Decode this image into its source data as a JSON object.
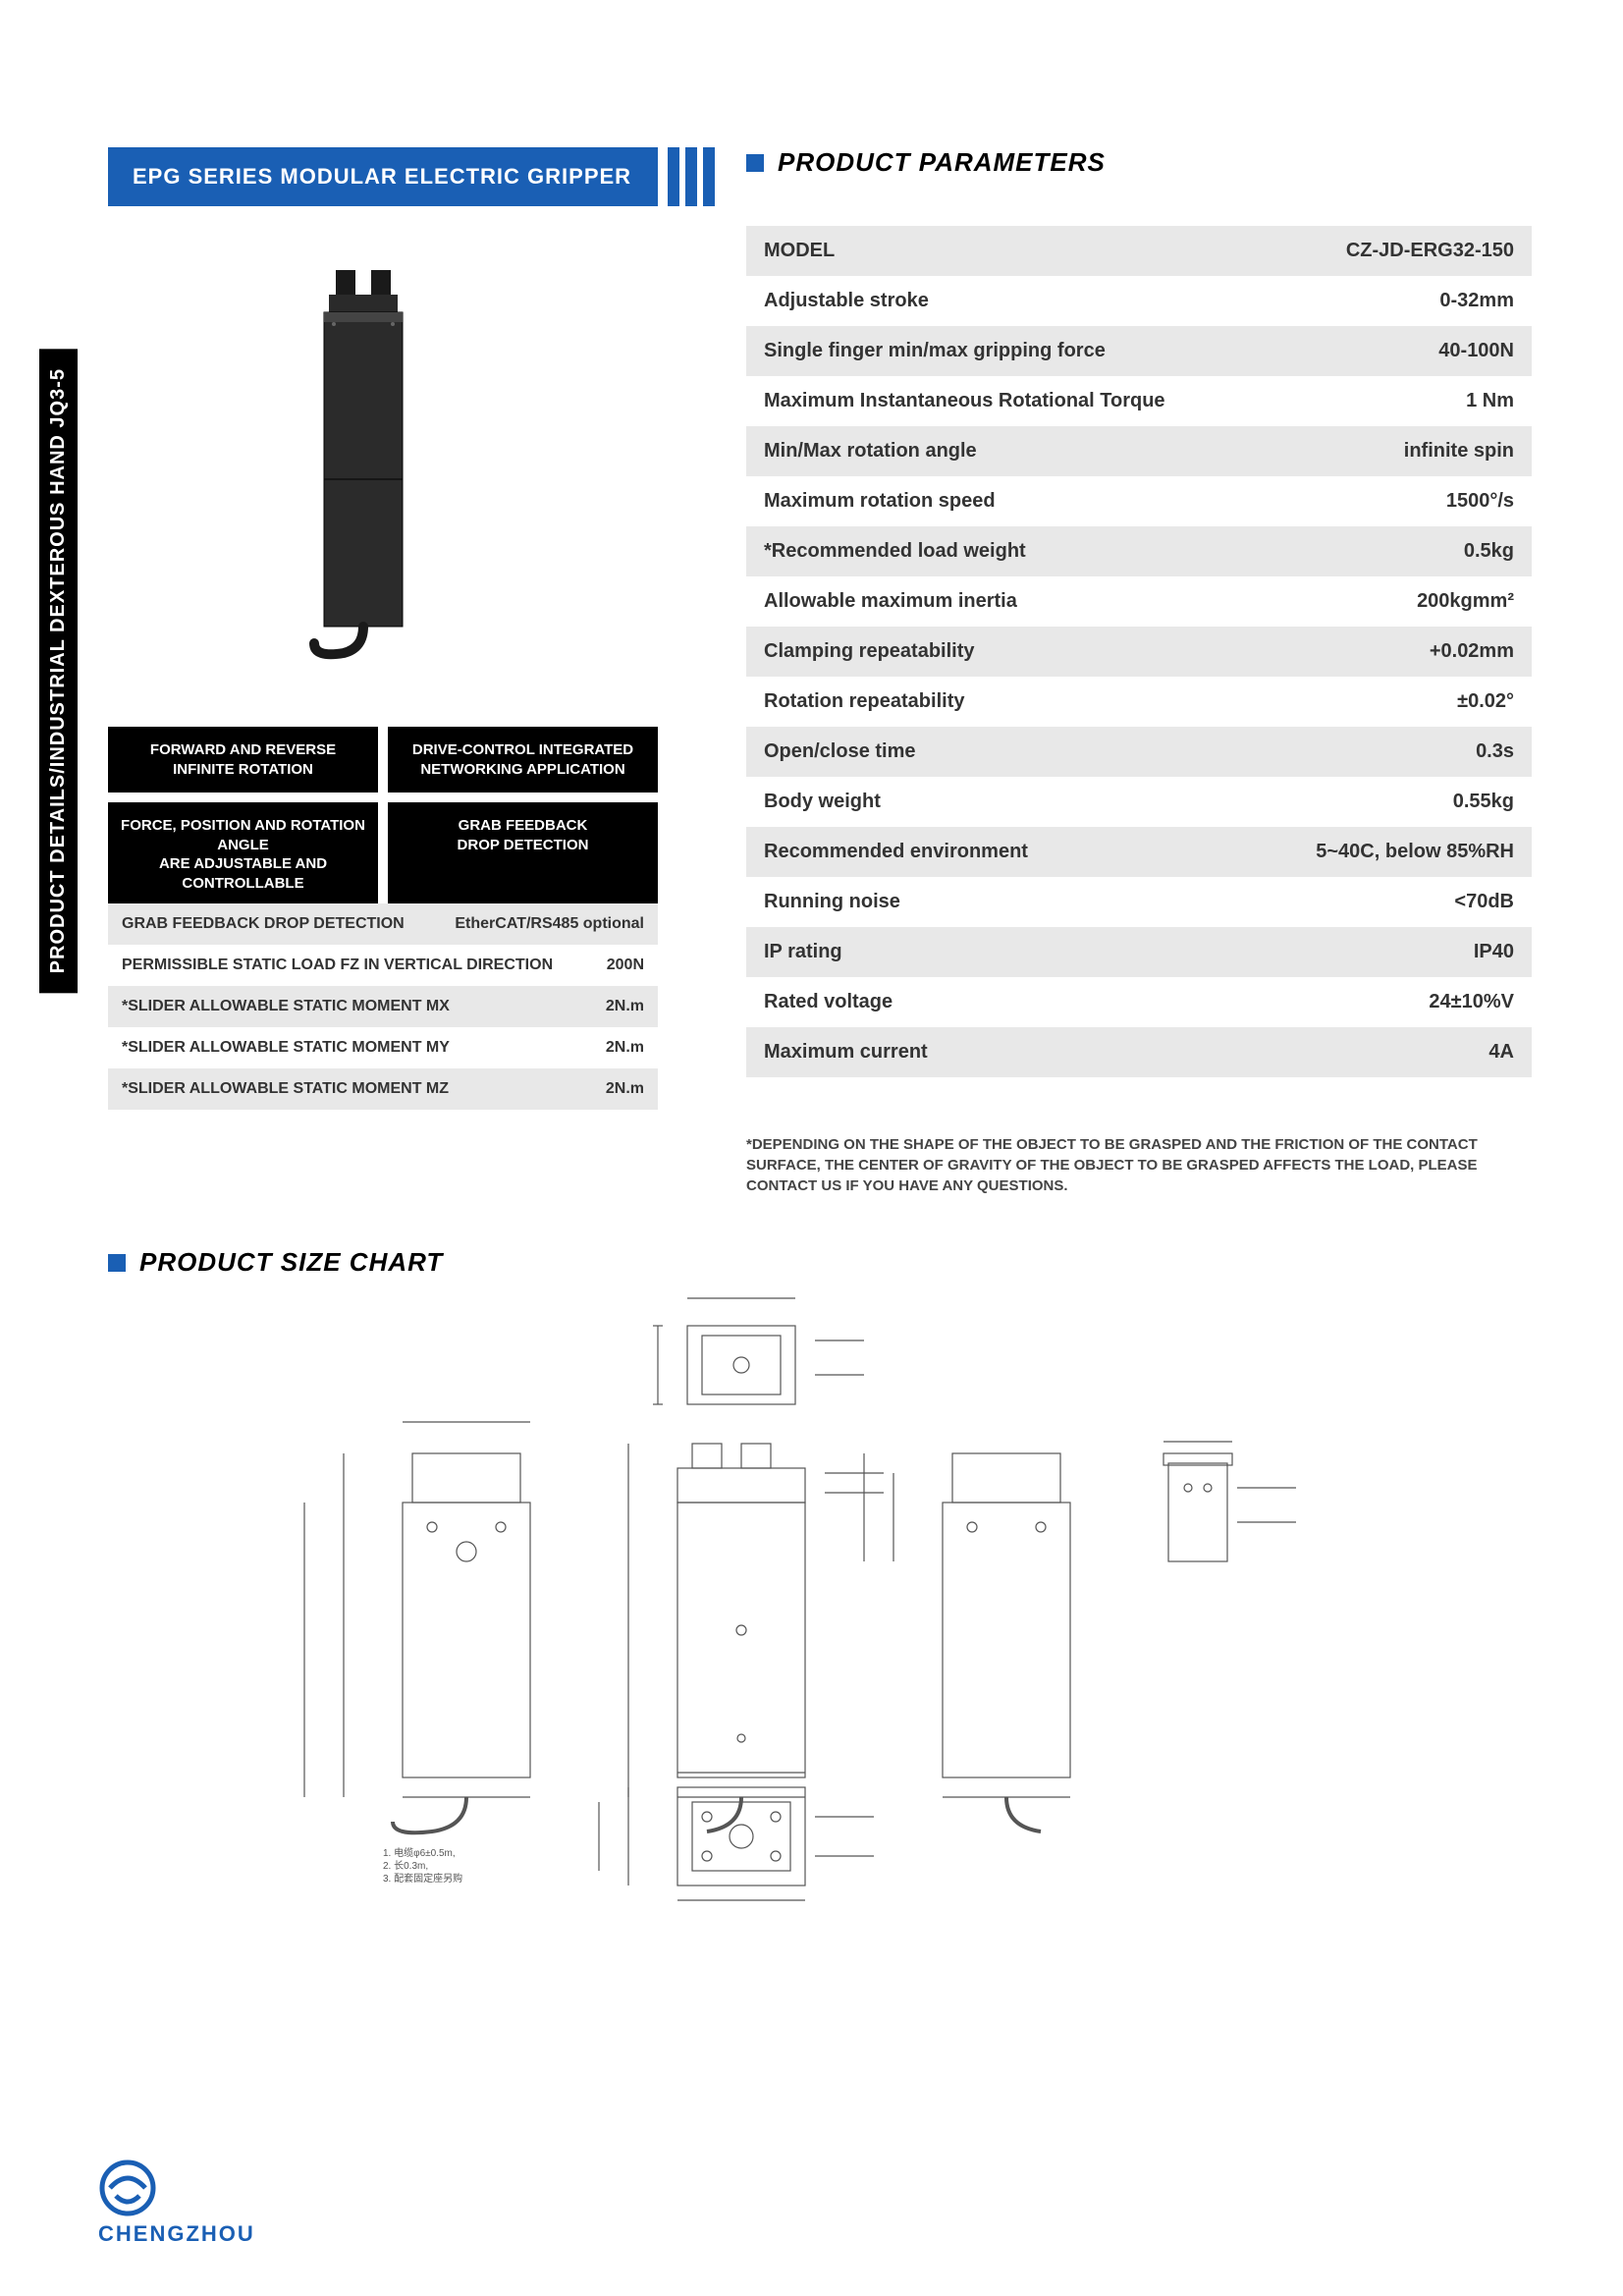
{
  "colors": {
    "brand_blue": "#1a5fb4",
    "black": "#000000",
    "white": "#ffffff",
    "row_grey": "#e8e8e8",
    "text": "#333333"
  },
  "side_tab": "PRODUCT DETAILS/INDUSTRIAL DEXTEROUS HAND JQ3-5",
  "header_bar": "EPG SERIES MODULAR ELECTRIC GRIPPER",
  "headings": {
    "parameters": "PRODUCT PARAMETERS",
    "size_chart": "PRODUCT SIZE CHART"
  },
  "features": [
    "FORWARD AND REVERSE\nINFINITE ROTATION",
    "DRIVE-CONTROL INTEGRATED\nNETWORKING APPLICATION",
    "FORCE, POSITION AND ROTATION ANGLE\nARE ADJUSTABLE AND CONTROLLABLE",
    "GRAB FEEDBACK\nDROP DETECTION"
  ],
  "sub_table": [
    {
      "key": "GRAB FEEDBACK DROP DETECTION",
      "val": "EtherCAT/RS485 optional"
    },
    {
      "key": "PERMISSIBLE STATIC LOAD FZ IN VERTICAL DIRECTION",
      "val": "200N"
    },
    {
      "key": "*SLIDER ALLOWABLE STATIC MOMENT MX",
      "val": "2N.m"
    },
    {
      "key": "*SLIDER ALLOWABLE STATIC MOMENT MY",
      "val": "2N.m"
    },
    {
      "key": "*SLIDER ALLOWABLE STATIC MOMENT MZ",
      "val": "2N.m"
    }
  ],
  "params": [
    {
      "key": "MODEL",
      "val": "CZ-JD-ERG32-150",
      "header": true
    },
    {
      "key": "Adjustable stroke",
      "val": "0-32mm"
    },
    {
      "key": "Single finger min/max gripping force",
      "val": "40-100N"
    },
    {
      "key": "Maximum Instantaneous Rotational Torque",
      "val": "1 Nm"
    },
    {
      "key": "Min/Max rotation angle",
      "val": "infinite spin"
    },
    {
      "key": "Maximum rotation speed",
      "val": "1500°/s"
    },
    {
      "key": "*Recommended load weight",
      "val": "0.5kg"
    },
    {
      "key": "Allowable maximum inertia",
      "val": "200kgmm²"
    },
    {
      "key": "Clamping repeatability",
      "val": "+0.02mm"
    },
    {
      "key": "Rotation repeatability",
      "val": "±0.02°"
    },
    {
      "key": "Open/close time",
      "val": "0.3s"
    },
    {
      "key": "Body weight",
      "val": "0.55kg"
    },
    {
      "key": "Recommended environment",
      "val": "5~40C, below 85%RH"
    },
    {
      "key": "Running noise",
      "val": "<70dB"
    },
    {
      "key": "IP rating",
      "val": "IP40"
    },
    {
      "key": "Rated voltage",
      "val": "24±10%V"
    },
    {
      "key": "Maximum current",
      "val": "4A"
    }
  ],
  "footnote": "*DEPENDING ON THE SHAPE OF THE OBJECT TO BE GRASPED AND THE FRICTION OF THE CONTACT SURFACE, THE CENTER OF GRAVITY OF THE OBJECT TO BE GRASPED AFFECTS THE LOAD, PLEASE CONTACT US IF YOU HAVE ANY QUESTIONS.",
  "logo_text": "CHENGZHOU"
}
